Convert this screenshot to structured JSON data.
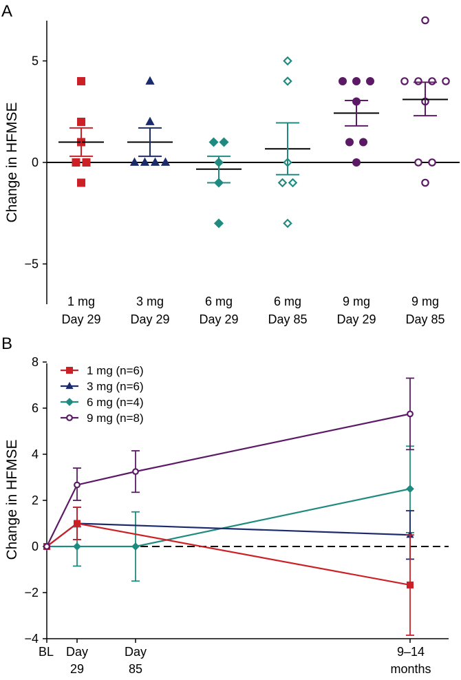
{
  "colors": {
    "1mg": "#cc2027",
    "3mg": "#1b2a6b",
    "6mg": "#1f8a80",
    "9mg": "#5c1a66",
    "axis": "#000000"
  },
  "chart_data": [
    {
      "panel": "A",
      "type": "scatter",
      "ylabel": "Change in HFMSE",
      "ylim": [
        -7,
        7
      ],
      "yticks": [
        {
          "v": 5,
          "label": "5"
        },
        {
          "v": 0,
          "label": "0"
        },
        {
          "v": -5,
          "label": "−5"
        }
      ],
      "zero_line": true,
      "groups": [
        {
          "line1": "1 mg",
          "line2": "Day 29",
          "color_key": "1mg",
          "marker": "square",
          "filled": true,
          "values": [
            4,
            2,
            1,
            0,
            0,
            -1
          ],
          "mean": 1.0,
          "sem_upper": 1.7,
          "sem_lower": 0.3
        },
        {
          "line1": "3 mg",
          "line2": "Day 29",
          "color_key": "3mg",
          "marker": "triangle",
          "filled": true,
          "values": [
            4,
            2,
            0,
            0,
            0,
            0
          ],
          "mean": 1.0,
          "sem_upper": 1.7,
          "sem_lower": 0.3
        },
        {
          "line1": "6 mg",
          "line2": "Day 29",
          "color_key": "6mg",
          "marker": "diamond",
          "filled": true,
          "values": [
            1,
            1,
            0,
            -1,
            -3
          ],
          "mean": -0.33,
          "sem_upper": 0.3,
          "sem_lower": -1.0
        },
        {
          "line1": "6 mg",
          "line2": "Day 85",
          "color_key": "6mg",
          "marker": "diamond",
          "filled": false,
          "values": [
            5,
            4,
            0,
            -1,
            -1,
            -3
          ],
          "mean": 0.67,
          "sem_upper": 1.95,
          "sem_lower": -0.6
        },
        {
          "line1": "9 mg",
          "line2": "Day 29",
          "color_key": "9mg",
          "marker": "circle",
          "filled": true,
          "values": [
            4,
            4,
            4,
            3,
            1,
            1,
            0
          ],
          "mean": 2.43,
          "sem_upper": 3.05,
          "sem_lower": 1.8
        },
        {
          "line1": "9 mg",
          "line2": "Day 85",
          "color_key": "9mg",
          "marker": "circle",
          "filled": false,
          "values": [
            7,
            4,
            4,
            4,
            4,
            3,
            0,
            0,
            -1
          ],
          "mean": 3.1,
          "sem_upper": 3.95,
          "sem_lower": 2.3
        }
      ]
    },
    {
      "panel": "B",
      "type": "line",
      "ylabel": "Change in HFMSE",
      "ylim": [
        -4,
        8
      ],
      "yticks": [
        8,
        6,
        4,
        2,
        0,
        -2,
        -4
      ],
      "x_positions": [
        0,
        29,
        85,
        400
      ],
      "xticks": [
        {
          "x": 0,
          "line1": "BL",
          "line2": ""
        },
        {
          "x": 29,
          "line1": "Day",
          "line2": "29"
        },
        {
          "x": 85,
          "line1": "Day",
          "line2": "85"
        },
        {
          "x": 400,
          "line1": "9–14",
          "line2": "months"
        }
      ],
      "dashed_zero": true,
      "series": [
        {
          "name": "1 mg (n=6)",
          "color_key": "1mg",
          "marker": "square",
          "filled": true,
          "x": [
            0,
            29,
            400
          ],
          "y": [
            0,
            1.0,
            -1.67
          ],
          "err": [
            [
              0,
              0
            ],
            [
              0.3,
              1.7
            ],
            [
              -3.85,
              0.5
            ]
          ]
        },
        {
          "name": "3 mg (n=6)",
          "color_key": "3mg",
          "marker": "triangle",
          "filled": true,
          "x": [
            0,
            29,
            400
          ],
          "y": [
            0,
            1.0,
            0.5
          ],
          "err": [
            [
              0,
              0
            ],
            [
              0.3,
              1.7
            ],
            [
              -0.55,
              1.55
            ]
          ]
        },
        {
          "name": "6 mg (n=4)",
          "color_key": "6mg",
          "marker": "diamond",
          "filled": true,
          "x": [
            0,
            29,
            85,
            400
          ],
          "y": [
            0,
            0,
            0,
            2.5
          ],
          "err": [
            [
              0,
              0
            ],
            [
              -0.85,
              0.85
            ],
            [
              -1.5,
              1.5
            ],
            [
              0.6,
              4.35
            ]
          ]
        },
        {
          "name": "9 mg (n=8)",
          "color_key": "9mg",
          "marker": "circle",
          "filled": false,
          "x": [
            0,
            29,
            85,
            400
          ],
          "y": [
            0,
            2.67,
            3.25,
            5.75
          ],
          "err": [
            [
              0,
              0
            ],
            [
              2.0,
              3.4
            ],
            [
              2.35,
              4.15
            ],
            [
              4.2,
              7.3
            ]
          ]
        }
      ]
    }
  ]
}
